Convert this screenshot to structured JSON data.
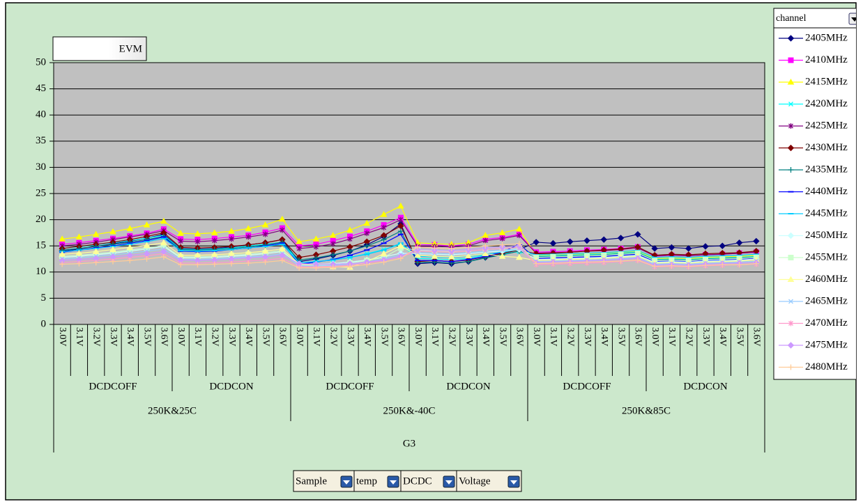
{
  "chart_data": {
    "type": "line",
    "title": "EVM",
    "legend_title": "channel",
    "field_buttons": [
      "Sample",
      "temp",
      "DCDC",
      "Voltage"
    ],
    "categories": [
      "3.0V",
      "3.1V",
      "3.2V",
      "3.3V",
      "3.4V",
      "3.5V",
      "3.6V",
      "3.0V",
      "3.1V",
      "3.2V",
      "3.3V",
      "3.4V",
      "3.5V",
      "3.6V",
      "3.0V",
      "3.1V",
      "3.2V",
      "3.3V",
      "3.4V",
      "3.5V",
      "3.6V",
      "3.0V",
      "3.1V",
      "3.2V",
      "3.3V",
      "3.4V",
      "3.5V",
      "3.6V",
      "3.0V",
      "3.1V",
      "3.2V",
      "3.3V",
      "3.4V",
      "3.5V",
      "3.6V",
      "3.0V",
      "3.1V",
      "3.2V",
      "3.3V",
      "3.4V",
      "3.5V",
      "3.6V"
    ],
    "dcdc_groups": [
      "DCDCOFF",
      "DCDCON",
      "DCDCOFF",
      "DCDCON",
      "DCDCOFF",
      "DCDCON"
    ],
    "temp_groups": [
      "250K&25C",
      "250K&-40C",
      "250K&85C"
    ],
    "sample_groups": [
      "G3"
    ],
    "ylim": [
      0,
      50
    ],
    "yticks": [
      0,
      5,
      10,
      15,
      20,
      25,
      30,
      35,
      40,
      45,
      50
    ],
    "grid": true,
    "series": [
      {
        "name": "2405MHz",
        "color": "#000080",
        "marker": "diamond",
        "values": [
          14.0,
          14.4,
          14.9,
          15.4,
          15.9,
          16.5,
          17.2,
          14.5,
          14.4,
          14.5,
          14.8,
          15.2,
          15.6,
          16.2,
          12.0,
          12.5,
          13.2,
          14.0,
          15.2,
          16.8,
          19.2,
          11.6,
          11.8,
          11.6,
          12.0,
          12.8,
          13.5,
          14.3,
          15.7,
          15.5,
          15.8,
          16.0,
          16.2,
          16.5,
          17.2,
          14.5,
          14.7,
          14.5,
          14.9,
          15.0,
          15.6,
          15.9
        ]
      },
      {
        "name": "2410MHz",
        "color": "#ff00ff",
        "marker": "square",
        "values": [
          15.3,
          15.6,
          16.0,
          16.4,
          16.9,
          17.4,
          18.2,
          16.3,
          16.2,
          16.4,
          16.7,
          17.0,
          17.6,
          18.4,
          15.0,
          15.3,
          16.0,
          16.8,
          17.8,
          19.0,
          20.4,
          15.2,
          15.2,
          15.0,
          15.3,
          16.3,
          16.6,
          17.2,
          13.8,
          13.9,
          14.0,
          14.2,
          14.3,
          14.5,
          14.8,
          13.0,
          13.2,
          13.1,
          13.3,
          13.4,
          13.6,
          13.8
        ]
      },
      {
        "name": "2415MHz",
        "color": "#ffff00",
        "marker": "triangle",
        "values": [
          16.3,
          16.7,
          17.2,
          17.7,
          18.3,
          19.0,
          19.7,
          17.4,
          17.3,
          17.5,
          17.8,
          18.3,
          19.0,
          20.1,
          15.8,
          16.3,
          17.0,
          18.0,
          19.3,
          21.0,
          22.6,
          15.6,
          15.4,
          15.3,
          15.6,
          17.0,
          17.5,
          18.2,
          13.2,
          13.3,
          13.4,
          13.5,
          13.6,
          13.8,
          14.0,
          12.6,
          12.7,
          12.6,
          12.8,
          12.9,
          13.0,
          13.2
        ]
      },
      {
        "name": "2420MHz",
        "color": "#00ffff",
        "marker": "x",
        "values": [
          14.5,
          14.8,
          15.2,
          15.6,
          16.0,
          16.5,
          17.0,
          14.4,
          14.3,
          14.4,
          14.6,
          15.0,
          15.3,
          15.7,
          11.8,
          12.0,
          12.3,
          12.8,
          13.5,
          14.3,
          15.3,
          12.6,
          12.5,
          12.4,
          12.6,
          13.2,
          13.5,
          13.9,
          13.0,
          13.1,
          13.2,
          13.3,
          13.4,
          13.6,
          13.8,
          12.4,
          12.5,
          12.4,
          12.6,
          12.7,
          12.8,
          13.0
        ]
      },
      {
        "name": "2425MHz",
        "color": "#800080",
        "marker": "asterisk",
        "values": [
          15.0,
          15.3,
          15.7,
          16.2,
          16.7,
          17.2,
          17.9,
          15.9,
          15.8,
          16.0,
          16.3,
          16.7,
          17.2,
          18.0,
          14.5,
          14.8,
          15.4,
          16.3,
          17.4,
          18.5,
          20.0,
          14.9,
          14.9,
          14.8,
          15.0,
          16.0,
          16.4,
          17.0,
          13.6,
          13.7,
          13.8,
          14.0,
          14.1,
          14.3,
          14.6,
          13.1,
          13.2,
          13.1,
          13.3,
          13.4,
          13.6,
          13.8
        ]
      },
      {
        "name": "2430MHz",
        "color": "#800000",
        "marker": "diamond",
        "values": [
          14.5,
          14.9,
          15.3,
          15.7,
          16.2,
          16.8,
          17.5,
          14.7,
          14.6,
          14.7,
          14.9,
          15.2,
          15.6,
          16.2,
          12.8,
          13.3,
          14.0,
          14.8,
          15.8,
          17.0,
          18.8,
          12.0,
          12.2,
          12.0,
          12.3,
          13.0,
          13.6,
          14.2,
          13.5,
          13.6,
          13.8,
          14.0,
          14.2,
          14.4,
          14.8,
          13.2,
          13.4,
          13.3,
          13.5,
          13.6,
          13.7,
          14.0
        ]
      },
      {
        "name": "2435MHz",
        "color": "#008080",
        "marker": "plus",
        "values": [
          14.2,
          14.5,
          14.9,
          15.3,
          15.7,
          16.2,
          16.8,
          14.3,
          14.2,
          14.3,
          14.5,
          14.8,
          15.2,
          15.7,
          12.3,
          12.7,
          13.3,
          14.0,
          15.0,
          16.2,
          17.8,
          11.8,
          11.9,
          11.7,
          12.0,
          12.7,
          13.3,
          14.0,
          12.9,
          13.0,
          13.1,
          13.2,
          13.3,
          13.5,
          13.7,
          12.3,
          12.4,
          12.3,
          12.5,
          12.6,
          12.7,
          12.9
        ]
      },
      {
        "name": "2440MHz",
        "color": "#0000ff",
        "marker": "dash",
        "values": [
          13.8,
          14.2,
          14.6,
          15.0,
          15.5,
          16.0,
          16.7,
          14.0,
          13.9,
          14.0,
          14.3,
          14.6,
          15.0,
          15.5,
          11.5,
          11.9,
          12.4,
          13.2,
          14.2,
          15.5,
          17.2,
          12.2,
          12.2,
          12.0,
          12.4,
          13.0,
          13.8,
          15.3,
          12.6,
          12.7,
          12.8,
          12.9,
          13.0,
          13.2,
          13.4,
          12.0,
          12.1,
          12.0,
          12.2,
          12.3,
          12.4,
          12.6
        ]
      },
      {
        "name": "2445MHz",
        "color": "#00ccff",
        "marker": "dash",
        "values": [
          13.9,
          14.2,
          14.5,
          14.9,
          15.3,
          15.8,
          16.4,
          14.1,
          14.0,
          14.1,
          14.3,
          14.6,
          14.9,
          15.3,
          11.8,
          12.0,
          12.3,
          12.8,
          13.4,
          14.2,
          15.5,
          13.0,
          12.9,
          12.8,
          13.0,
          13.4,
          13.8,
          14.3,
          13.3,
          13.4,
          13.5,
          13.6,
          13.7,
          13.9,
          14.1,
          12.8,
          12.9,
          12.8,
          13.0,
          13.1,
          13.2,
          13.4
        ]
      },
      {
        "name": "2450MHz",
        "color": "#ccffff",
        "marker": "diamond",
        "values": [
          12.8,
          13.0,
          13.3,
          13.6,
          14.0,
          14.4,
          14.9,
          12.7,
          12.7,
          12.8,
          13.0,
          13.2,
          13.5,
          13.9,
          11.5,
          11.5,
          11.6,
          11.9,
          12.3,
          12.9,
          13.6,
          13.5,
          13.4,
          13.3,
          13.5,
          13.8,
          14.0,
          14.3,
          12.4,
          12.5,
          12.6,
          12.7,
          12.8,
          13.0,
          13.2,
          11.9,
          12.0,
          11.9,
          12.1,
          12.2,
          12.3,
          12.5
        ]
      },
      {
        "name": "2455MHz",
        "color": "#ccffcc",
        "marker": "square",
        "values": [
          13.0,
          13.2,
          13.5,
          13.8,
          14.2,
          14.6,
          15.1,
          12.9,
          12.9,
          13.0,
          13.2,
          13.4,
          13.7,
          14.1,
          11.3,
          11.3,
          11.4,
          11.7,
          12.2,
          12.8,
          14.6,
          14.2,
          14.0,
          13.9,
          14.0,
          14.3,
          14.5,
          14.6,
          12.8,
          12.9,
          13.0,
          13.1,
          13.2,
          13.4,
          13.6,
          12.2,
          12.3,
          12.2,
          12.4,
          12.5,
          12.6,
          12.8
        ]
      },
      {
        "name": "2460MHz",
        "color": "#ffff99",
        "marker": "triangle",
        "values": [
          13.4,
          13.6,
          13.9,
          14.3,
          14.7,
          15.1,
          15.6,
          13.2,
          13.2,
          13.3,
          13.5,
          13.7,
          14.0,
          14.4,
          11.6,
          11.2,
          11.0,
          10.9,
          12.0,
          13.5,
          15.0,
          13.2,
          13.0,
          12.9,
          13.1,
          13.5,
          13.0,
          12.8,
          12.2,
          12.3,
          12.4,
          12.5,
          12.6,
          12.8,
          13.0,
          11.7,
          11.8,
          11.7,
          11.9,
          12.0,
          12.1,
          12.3
        ]
      },
      {
        "name": "2465MHz",
        "color": "#99ccff",
        "marker": "x",
        "values": [
          12.5,
          12.7,
          13.0,
          13.3,
          13.6,
          14.0,
          14.4,
          12.4,
          12.4,
          12.5,
          12.7,
          12.9,
          13.1,
          13.5,
          11.2,
          11.2,
          11.3,
          11.5,
          11.9,
          12.5,
          13.3,
          13.7,
          13.6,
          13.5,
          13.7,
          14.0,
          14.2,
          14.4,
          12.0,
          12.1,
          12.2,
          12.3,
          12.4,
          12.6,
          12.8,
          11.5,
          11.6,
          11.5,
          11.7,
          11.8,
          11.9,
          12.1
        ]
      },
      {
        "name": "2470MHz",
        "color": "#ff99cc",
        "marker": "asterisk",
        "values": [
          11.8,
          12.0,
          12.2,
          12.5,
          12.8,
          13.1,
          13.5,
          11.7,
          11.7,
          11.8,
          11.9,
          12.1,
          12.3,
          12.6,
          11.0,
          11.0,
          11.1,
          11.3,
          11.7,
          12.2,
          12.9,
          14.0,
          13.9,
          13.8,
          14.0,
          14.3,
          14.5,
          14.7,
          11.4,
          11.5,
          11.6,
          11.7,
          11.8,
          12.0,
          12.2,
          11.0,
          11.1,
          11.0,
          11.2,
          11.3,
          11.4,
          11.5
        ]
      },
      {
        "name": "2475MHz",
        "color": "#cc99ff",
        "marker": "diamond",
        "values": [
          12.2,
          12.4,
          12.6,
          12.9,
          13.2,
          13.5,
          13.9,
          12.3,
          12.2,
          12.3,
          12.5,
          12.7,
          12.9,
          13.2,
          11.6,
          11.5,
          11.5,
          11.6,
          11.9,
          12.3,
          13.0,
          14.3,
          14.2,
          14.1,
          14.3,
          14.6,
          14.8,
          15.0,
          11.8,
          11.9,
          12.0,
          12.1,
          12.2,
          12.4,
          12.6,
          11.3,
          11.4,
          11.3,
          11.5,
          11.6,
          11.7,
          11.8
        ]
      },
      {
        "name": "2480MHz",
        "color": "#ffcc99",
        "marker": "plus",
        "values": [
          11.5,
          11.6,
          11.8,
          12.0,
          12.2,
          12.5,
          12.9,
          11.4,
          11.4,
          11.5,
          11.6,
          11.7,
          11.9,
          12.2,
          10.8,
          10.8,
          10.9,
          11.1,
          11.4,
          11.9,
          12.6,
          14.8,
          14.6,
          14.5,
          14.7,
          15.0,
          15.2,
          15.4,
          11.6,
          11.7,
          11.8,
          11.9,
          12.0,
          12.1,
          12.3,
          11.1,
          11.2,
          11.1,
          11.3,
          11.4,
          11.4,
          11.6
        ]
      }
    ]
  }
}
